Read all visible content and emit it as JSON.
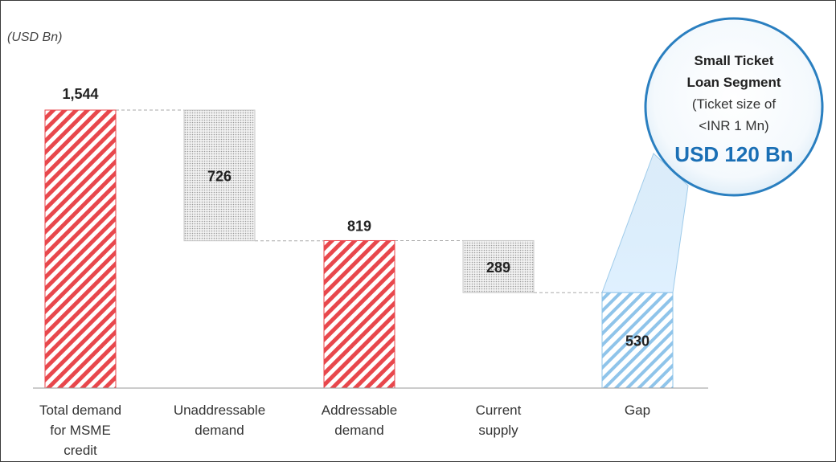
{
  "chart_data": {
    "type": "bar",
    "subtype": "waterfall",
    "unit_label": "(USD Bn)",
    "categories": [
      [
        "Total demand",
        "for MSME",
        "credit"
      ],
      [
        "Unaddressable",
        "demand"
      ],
      [
        "Addressable",
        "demand"
      ],
      [
        "Current",
        "supply"
      ],
      [
        "Gap"
      ]
    ],
    "values": [
      1544,
      726,
      819,
      289,
      530
    ],
    "value_labels": [
      "1,544",
      "726",
      "819",
      "289",
      "530"
    ],
    "ylim": [
      0,
      1544
    ],
    "grid": false,
    "legend": "none",
    "callout": {
      "lines_bold": [
        "Small Ticket",
        "Loan Segment"
      ],
      "lines_normal": [
        "(Ticket size of",
        "<INR 1 Mn)"
      ],
      "highlight": "USD 120 Bn"
    },
    "colors": {
      "total": "#e8474c",
      "decrease": "#9a9a9a",
      "gap": "#8fc4ea",
      "callout_border": "#2a7fc0",
      "highlight": "#1a6fb5"
    }
  }
}
